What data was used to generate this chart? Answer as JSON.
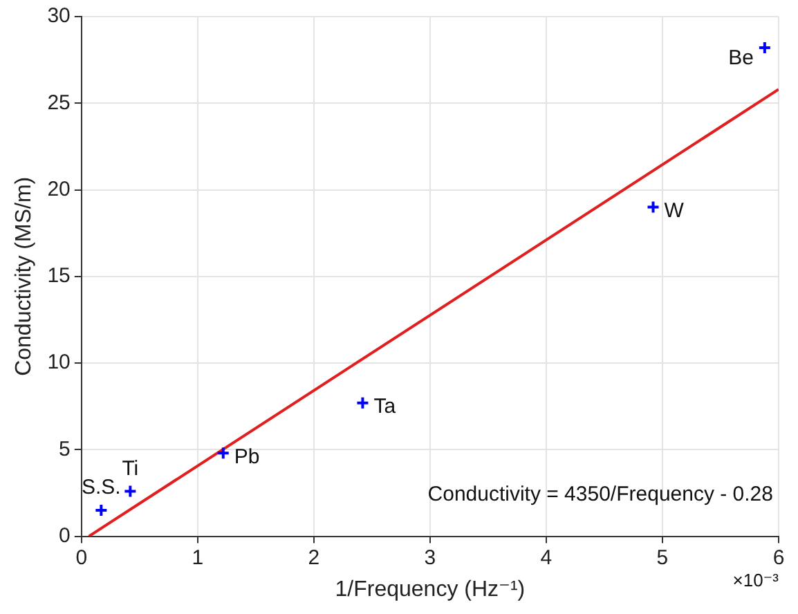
{
  "chart_data": {
    "type": "scatter",
    "xlabel": "1/Frequency (Hz⁻¹)",
    "ylabel": "Conductivity (MS/m)",
    "xlim": [
      0,
      6
    ],
    "xticks": [
      0,
      1,
      2,
      3,
      4,
      5,
      6
    ],
    "ylim": [
      0,
      30
    ],
    "yticks": [
      0,
      5,
      10,
      15,
      20,
      25,
      30
    ],
    "grid": true,
    "legend": false,
    "marker": "cross",
    "series": [
      {
        "type": "scatter",
        "color": "#0000ff",
        "x": [
          0.17,
          0.42,
          1.22,
          2.42,
          4.92,
          5.88
        ],
        "values": [
          1.5,
          2.6,
          4.8,
          7.7,
          19.0,
          28.2
        ]
      },
      {
        "type": "line",
        "color": "#e02020",
        "x": [
          0.064,
          6
        ],
        "values": [
          0,
          25.8
        ],
        "marker": "none",
        "line_style": "solid"
      }
    ],
    "annotations": [
      {
        "text": "S.S.",
        "x": 0.17,
        "y": 1.5
      },
      {
        "text": "Ti",
        "x": 0.42,
        "y": 2.6
      },
      {
        "text": "Pb",
        "x": 1.22,
        "y": 4.8
      },
      {
        "text": "Ta",
        "x": 2.42,
        "y": 7.7
      },
      {
        "text": "W",
        "x": 4.92,
        "y": 19.0
      },
      {
        "text": "Be",
        "x": 5.88,
        "y": 28.2
      },
      "Conductivity = 4350/Frequency - 0.28",
      "×10⁻³"
    ]
  }
}
